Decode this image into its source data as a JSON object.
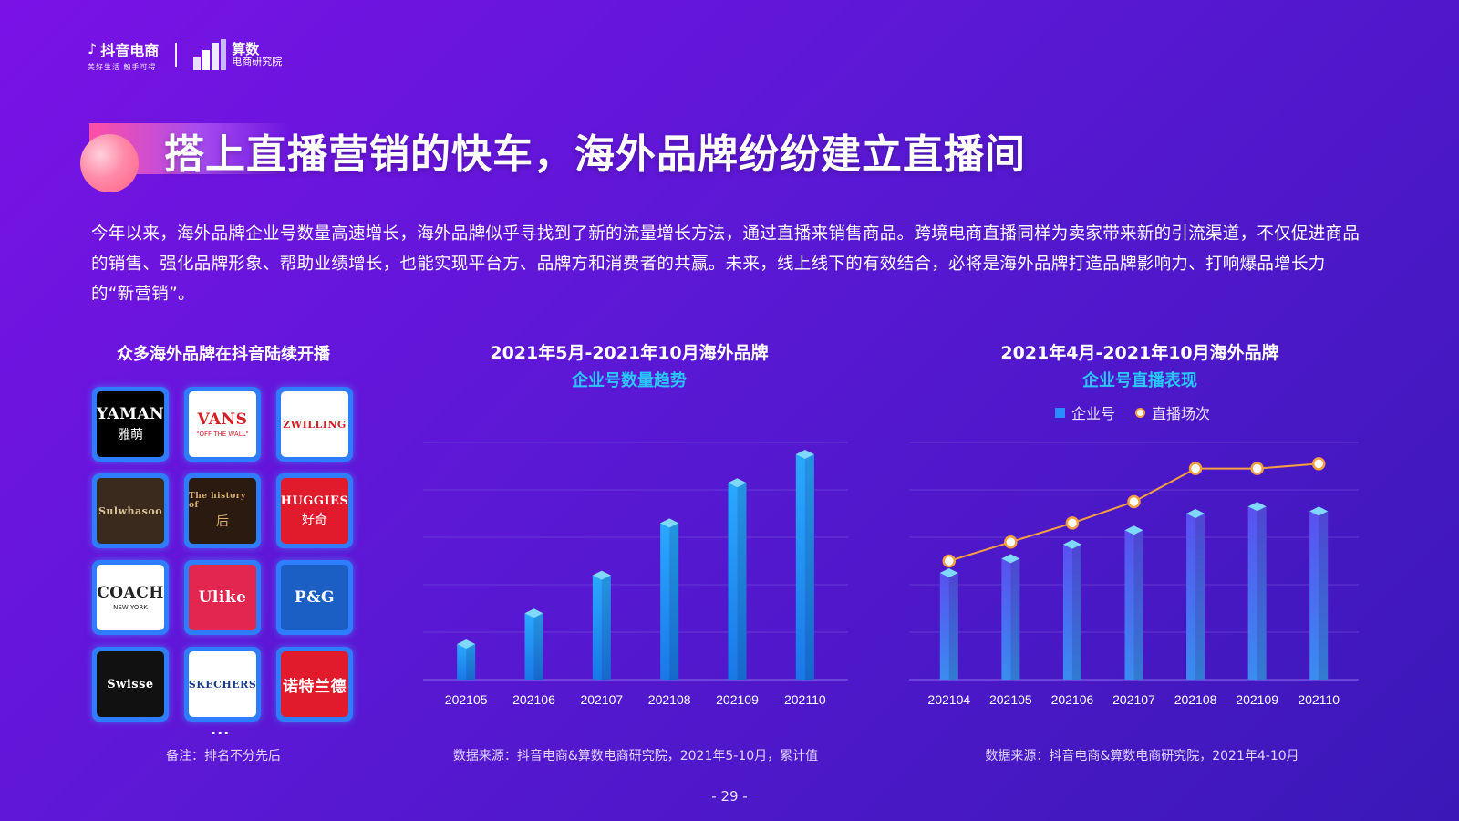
{
  "header": {
    "douyin_name": "抖音电商",
    "douyin_slogan": "美好生活 触手可得",
    "suanshu_name": "算数",
    "suanshu_sub": "电商研究院"
  },
  "title": "搭上直播营销的快车，海外品牌纷纷建立直播间",
  "intro": "今年以来，海外品牌企业号数量高速增长，海外品牌似乎寻找到了新的流量增长方法，通过直播来销售商品。跨境电商直播同样为卖家带来新的引流渠道，不仅促进商品的销售、强化品牌形象、帮助业绩增长，也能实现平台方、品牌方和消费者的共赢。未来，线上线下的有效结合，必将是海外品牌打造品牌影响力、打响爆品增长力的“新营销”。",
  "brands_panel": {
    "title": "众多海外品牌在抖音陆续开播",
    "brands": [
      {
        "name": "YAMAN",
        "sub": "雅萌",
        "bg": "#000000",
        "fg": "#ffffff"
      },
      {
        "name": "VANS",
        "sub": "\"OFF THE WALL\"",
        "bg": "#ffffff",
        "fg": "#d41f26"
      },
      {
        "name": "ZWILLING",
        "sub": "",
        "bg": "#ffffff",
        "fg": "#d41f26"
      },
      {
        "name": "Sulwhasoo",
        "sub": "",
        "bg": "#3a2a1e",
        "fg": "#d8c49a"
      },
      {
        "name": "The history of",
        "sub": "后",
        "bg": "#2a1a10",
        "fg": "#d8b070"
      },
      {
        "name": "HUGGIES",
        "sub": "好奇",
        "bg": "#e21b2c",
        "fg": "#ffffff"
      },
      {
        "name": "COACH",
        "sub": "NEW YORK",
        "bg": "#ffffff",
        "fg": "#222222"
      },
      {
        "name": "Ulike",
        "sub": "",
        "bg": "#e2264f",
        "fg": "#ffffff"
      },
      {
        "name": "P&G",
        "sub": "",
        "bg": "#1b5fc4",
        "fg": "#ffffff"
      },
      {
        "name": "Swisse",
        "sub": "",
        "bg": "#111111",
        "fg": "#ffffff"
      },
      {
        "name": "SKECHERS",
        "sub": "",
        "bg": "#ffffff",
        "fg": "#1b3a8c"
      },
      {
        "name": "诺特兰德",
        "sub": "",
        "bg": "#e21b2c",
        "fg": "#ffffff"
      }
    ],
    "more": "...",
    "note": "备注：排名不分先后"
  },
  "colors": {
    "bar_top": "#2aa8ff",
    "bar_bottom": "#1a78e8",
    "bar2_top": "#5a50f0",
    "bar2_bottom": "#3a8cf0",
    "line": "#f5a040",
    "grid": "#7a5ae0"
  },
  "chart_data": [
    {
      "type": "bar",
      "title": "2021年5月-2021年10月海外品牌",
      "subtitle": "企业号数量趋势",
      "categories": [
        "202105",
        "202106",
        "202107",
        "202108",
        "202109",
        "202110"
      ],
      "values": [
        15,
        28,
        44,
        66,
        83,
        95
      ],
      "ylim": [
        0,
        100
      ],
      "grid": true,
      "source": "数据来源：抖音电商&算数电商研究院，2021年5-10月，累计值"
    },
    {
      "type": "bar",
      "title": "2021年4月-2021年10月海外品牌",
      "subtitle": "企业号直播表现",
      "categories": [
        "202104",
        "202105",
        "202106",
        "202107",
        "202108",
        "202109",
        "202110"
      ],
      "series": [
        {
          "name": "企业号",
          "type": "bar",
          "values": [
            45,
            51,
            57,
            63,
            70,
            73,
            71
          ]
        },
        {
          "name": "直播场次",
          "type": "line",
          "values": [
            50,
            58,
            66,
            75,
            89,
            89,
            91
          ]
        }
      ],
      "ylim": [
        0,
        100
      ],
      "grid": true,
      "legend": "top-center",
      "source": "数据来源：抖音电商&算数电商研究院，2021年4-10月"
    }
  ],
  "page_number": "- 29 -"
}
